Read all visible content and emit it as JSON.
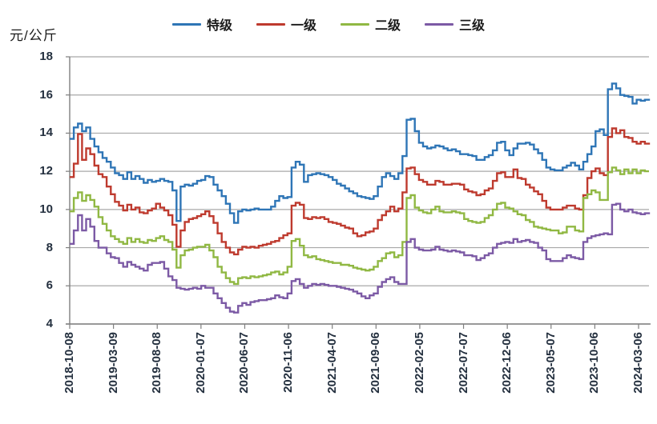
{
  "chart_data": {
    "type": "line",
    "title": "",
    "ylabel": "元/公斤",
    "xlabel": "",
    "ylim": [
      4,
      18
    ],
    "yticks": [
      18,
      16,
      14,
      12,
      10,
      8,
      6,
      4
    ],
    "grid": "horizontal",
    "legend_position": "top",
    "x_unit": "fortnight-index from 2018-10-08",
    "x_tick_labels": [
      "2018-10-08",
      "2019-03-09",
      "2019-08-08",
      "2020-01-07",
      "2020-06-07",
      "2020-11-06",
      "2021-04-07",
      "2021-09-06",
      "2022-02-05",
      "2022-07-07",
      "2022-12-06",
      "2023-05-07",
      "2023-10-06",
      "2024-03-06"
    ],
    "colors": {
      "grid": "#a8a8a8",
      "axis": "#7f7f7f",
      "tick_text": "#24303f",
      "background": "#ffffff"
    },
    "series": [
      {
        "name": "特级",
        "color": "#2e75b6",
        "values": [
          13.7,
          14.3,
          14.5,
          14.1,
          14.3,
          13.7,
          13.3,
          13.0,
          12.7,
          12.5,
          12.2,
          11.9,
          11.8,
          11.6,
          11.95,
          11.6,
          11.75,
          11.6,
          11.4,
          11.55,
          11.45,
          11.5,
          11.6,
          11.5,
          11.45,
          11.0,
          9.4,
          11.2,
          11.3,
          11.25,
          11.35,
          11.5,
          11.55,
          11.75,
          11.7,
          11.3,
          11.0,
          10.7,
          10.3,
          9.8,
          9.3,
          9.9,
          10.0,
          9.95,
          10.0,
          10.05,
          10.0,
          10.0,
          10.0,
          10.15,
          10.45,
          10.7,
          10.6,
          10.65,
          12.2,
          12.5,
          12.35,
          11.45,
          11.8,
          11.85,
          11.9,
          11.85,
          11.8,
          11.7,
          11.55,
          11.35,
          11.25,
          11.1,
          10.95,
          10.85,
          10.7,
          10.65,
          10.6,
          10.55,
          10.7,
          11.2,
          11.7,
          11.9,
          11.75,
          11.6,
          11.9,
          12.8,
          14.7,
          14.75,
          14.1,
          13.5,
          13.3,
          13.2,
          13.25,
          13.35,
          13.3,
          13.2,
          13.1,
          13.15,
          13.05,
          12.9,
          12.9,
          12.85,
          12.8,
          12.6,
          12.6,
          12.75,
          12.85,
          13.1,
          13.5,
          13.55,
          13.1,
          12.85,
          13.2,
          13.45,
          13.45,
          13.5,
          13.4,
          13.15,
          12.95,
          12.6,
          12.2,
          12.1,
          12.05,
          12.05,
          12.2,
          12.3,
          12.45,
          12.3,
          12.1,
          12.5,
          12.9,
          13.3,
          14.1,
          14.2,
          13.9,
          16.3,
          16.6,
          16.35,
          16.0,
          15.95,
          15.9,
          15.55,
          15.75,
          15.7,
          15.75,
          15.7
        ]
      },
      {
        "name": "一级",
        "color": "#be3a2e",
        "values": [
          11.7,
          12.4,
          13.95,
          12.6,
          13.2,
          12.9,
          12.3,
          11.85,
          11.7,
          11.2,
          10.8,
          10.4,
          10.2,
          9.95,
          10.25,
          10.0,
          10.1,
          9.85,
          9.8,
          9.95,
          10.05,
          10.3,
          10.1,
          9.95,
          9.7,
          9.2,
          8.05,
          8.9,
          9.35,
          9.5,
          9.55,
          9.65,
          9.75,
          9.9,
          9.65,
          9.3,
          8.75,
          8.3,
          8.0,
          7.75,
          7.65,
          7.9,
          8.05,
          8.0,
          8.05,
          8.0,
          8.1,
          8.15,
          8.2,
          8.3,
          8.35,
          8.5,
          8.65,
          8.75,
          10.2,
          10.35,
          10.25,
          9.55,
          9.5,
          9.6,
          9.55,
          9.6,
          9.5,
          9.35,
          9.3,
          9.25,
          9.15,
          9.05,
          9.0,
          8.75,
          8.6,
          8.65,
          8.8,
          8.85,
          9.0,
          9.45,
          9.7,
          9.9,
          10.15,
          9.9,
          10.05,
          10.9,
          12.15,
          12.2,
          11.85,
          11.55,
          11.45,
          11.3,
          11.3,
          11.5,
          11.45,
          11.3,
          11.3,
          11.35,
          11.35,
          11.3,
          11.05,
          10.95,
          10.9,
          10.75,
          10.8,
          11.0,
          11.1,
          11.5,
          11.9,
          11.95,
          11.7,
          11.7,
          12.1,
          11.65,
          11.6,
          11.3,
          11.15,
          10.95,
          10.8,
          10.45,
          10.1,
          10.0,
          10.0,
          10.0,
          10.1,
          10.2,
          10.2,
          10.05,
          10.0,
          10.75,
          11.65,
          12.0,
          12.15,
          11.9,
          11.8,
          13.8,
          14.25,
          14.0,
          14.15,
          13.8,
          13.75,
          13.55,
          13.45,
          13.55,
          13.45,
          13.5
        ]
      },
      {
        "name": "二级",
        "color": "#90b843",
        "values": [
          9.9,
          10.6,
          10.9,
          10.45,
          10.75,
          10.5,
          10.15,
          9.6,
          9.25,
          8.9,
          8.6,
          8.45,
          8.3,
          8.2,
          8.5,
          8.3,
          8.45,
          8.3,
          8.25,
          8.4,
          8.35,
          8.5,
          8.6,
          8.4,
          8.3,
          7.9,
          6.95,
          7.6,
          7.85,
          7.9,
          8.0,
          8.05,
          8.05,
          8.15,
          7.85,
          7.5,
          7.0,
          6.7,
          6.4,
          6.2,
          6.1,
          6.4,
          6.45,
          6.4,
          6.5,
          6.45,
          6.5,
          6.55,
          6.6,
          6.7,
          6.75,
          6.6,
          6.7,
          7.0,
          8.35,
          8.45,
          8.1,
          7.6,
          7.5,
          7.55,
          7.4,
          7.35,
          7.3,
          7.25,
          7.2,
          7.2,
          7.1,
          7.1,
          7.05,
          6.95,
          6.9,
          6.85,
          6.8,
          6.85,
          7.0,
          7.3,
          7.45,
          7.7,
          7.75,
          7.5,
          7.6,
          8.3,
          10.6,
          10.75,
          10.1,
          9.95,
          9.85,
          9.8,
          10.0,
          10.15,
          9.9,
          9.85,
          9.85,
          9.9,
          9.85,
          9.8,
          9.5,
          9.4,
          9.35,
          9.3,
          9.35,
          9.55,
          9.7,
          10.0,
          10.3,
          10.35,
          10.1,
          10.05,
          9.9,
          9.75,
          9.7,
          9.45,
          9.35,
          9.1,
          9.05,
          9.0,
          8.95,
          8.9,
          8.9,
          8.75,
          8.8,
          9.1,
          9.1,
          8.9,
          8.85,
          10.6,
          10.8,
          11.0,
          10.9,
          10.5,
          10.5,
          11.95,
          12.2,
          12.05,
          11.85,
          12.1,
          11.9,
          12.1,
          11.9,
          12.05,
          12.0,
          12.0
        ]
      },
      {
        "name": "三级",
        "color": "#7c5aa5",
        "values": [
          8.2,
          8.9,
          9.7,
          8.9,
          9.5,
          9.1,
          8.35,
          8.0,
          8.0,
          7.7,
          7.5,
          7.45,
          7.2,
          7.0,
          7.25,
          7.1,
          7.0,
          6.9,
          6.8,
          7.1,
          7.2,
          7.2,
          7.25,
          6.9,
          6.5,
          6.3,
          5.9,
          5.85,
          5.8,
          5.85,
          5.9,
          5.85,
          6.0,
          5.9,
          5.9,
          5.6,
          5.35,
          5.1,
          4.85,
          4.65,
          4.6,
          4.95,
          5.1,
          5.0,
          5.15,
          5.2,
          5.25,
          5.25,
          5.3,
          5.35,
          5.5,
          5.4,
          5.35,
          5.6,
          6.25,
          6.35,
          6.1,
          5.9,
          6.0,
          6.1,
          6.05,
          6.1,
          6.05,
          6.0,
          6.0,
          5.95,
          5.9,
          5.85,
          5.8,
          5.7,
          5.6,
          5.45,
          5.35,
          5.5,
          5.6,
          5.95,
          6.2,
          6.35,
          6.45,
          6.2,
          6.1,
          6.1,
          8.3,
          8.45,
          8.0,
          7.9,
          7.85,
          7.85,
          7.9,
          8.05,
          7.9,
          7.85,
          7.8,
          7.85,
          7.8,
          7.75,
          7.6,
          7.6,
          7.55,
          7.35,
          7.45,
          7.6,
          7.7,
          8.0,
          8.2,
          8.25,
          8.3,
          8.25,
          8.45,
          8.3,
          8.35,
          8.4,
          8.3,
          8.25,
          8.0,
          7.85,
          7.4,
          7.3,
          7.3,
          7.3,
          7.45,
          7.6,
          7.5,
          7.45,
          7.4,
          8.3,
          8.5,
          8.6,
          8.65,
          8.7,
          8.75,
          8.7,
          10.25,
          10.3,
          10.0,
          9.9,
          10.0,
          9.85,
          9.8,
          9.75,
          9.8,
          9.75
        ]
      }
    ]
  }
}
